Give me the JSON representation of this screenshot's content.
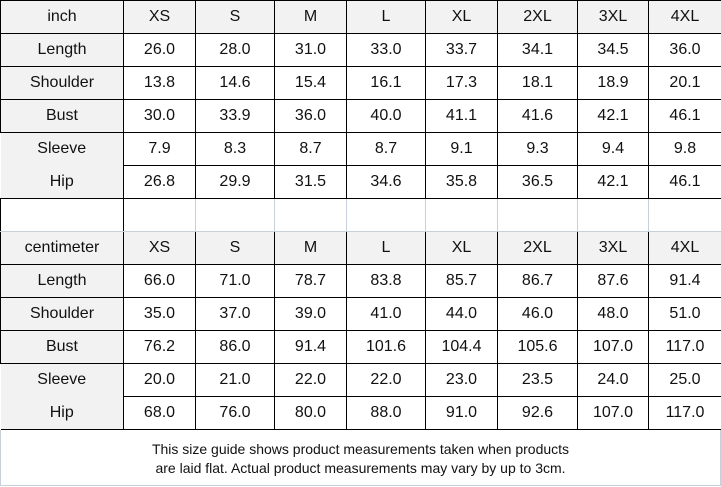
{
  "sizes": [
    "XS",
    "S",
    "M",
    "L",
    "XL",
    "2XL",
    "3XL",
    "4XL"
  ],
  "inch": {
    "unit_label": "inch",
    "rows": [
      {
        "label": "Length",
        "values": [
          "26.0",
          "28.0",
          "31.0",
          "33.0",
          "33.7",
          "34.1",
          "34.5",
          "36.0"
        ]
      },
      {
        "label": "Shoulder",
        "values": [
          "13.8",
          "14.6",
          "15.4",
          "16.1",
          "17.3",
          "18.1",
          "18.9",
          "20.1"
        ]
      },
      {
        "label": "Bust",
        "values": [
          "30.0",
          "33.9",
          "36.0",
          "40.0",
          "41.1",
          "41.6",
          "42.1",
          "46.1"
        ]
      },
      {
        "label": "Sleeve",
        "values": [
          "7.9",
          "8.3",
          "8.7",
          "8.7",
          "9.1",
          "9.3",
          "9.4",
          "9.8"
        ]
      },
      {
        "label": "Hip",
        "values": [
          "26.8",
          "29.9",
          "31.5",
          "34.6",
          "35.8",
          "36.5",
          "42.1",
          "46.1"
        ]
      }
    ]
  },
  "centimeter": {
    "unit_label": "centimeter",
    "rows": [
      {
        "label": "Length",
        "values": [
          "66.0",
          "71.0",
          "78.7",
          "83.8",
          "85.7",
          "86.7",
          "87.6",
          "91.4"
        ]
      },
      {
        "label": "Shoulder",
        "values": [
          "35.0",
          "37.0",
          "39.0",
          "41.0",
          "44.0",
          "46.0",
          "48.0",
          "51.0"
        ]
      },
      {
        "label": "Bust",
        "values": [
          "76.2",
          "86.0",
          "91.4",
          "101.6",
          "104.4",
          "105.6",
          "107.0",
          "117.0"
        ]
      },
      {
        "label": "Sleeve",
        "values": [
          "20.0",
          "21.0",
          "22.0",
          "22.0",
          "23.0",
          "23.5",
          "24.0",
          "25.0"
        ]
      },
      {
        "label": "Hip",
        "values": [
          "68.0",
          "76.0",
          "80.0",
          "88.0",
          "91.0",
          "92.6",
          "107.0",
          "117.0"
        ]
      }
    ]
  },
  "note": {
    "line1": "This size guide shows product measurements taken when products",
    "line2": "are laid flat. Actual product measurements may vary by up to 3cm."
  }
}
